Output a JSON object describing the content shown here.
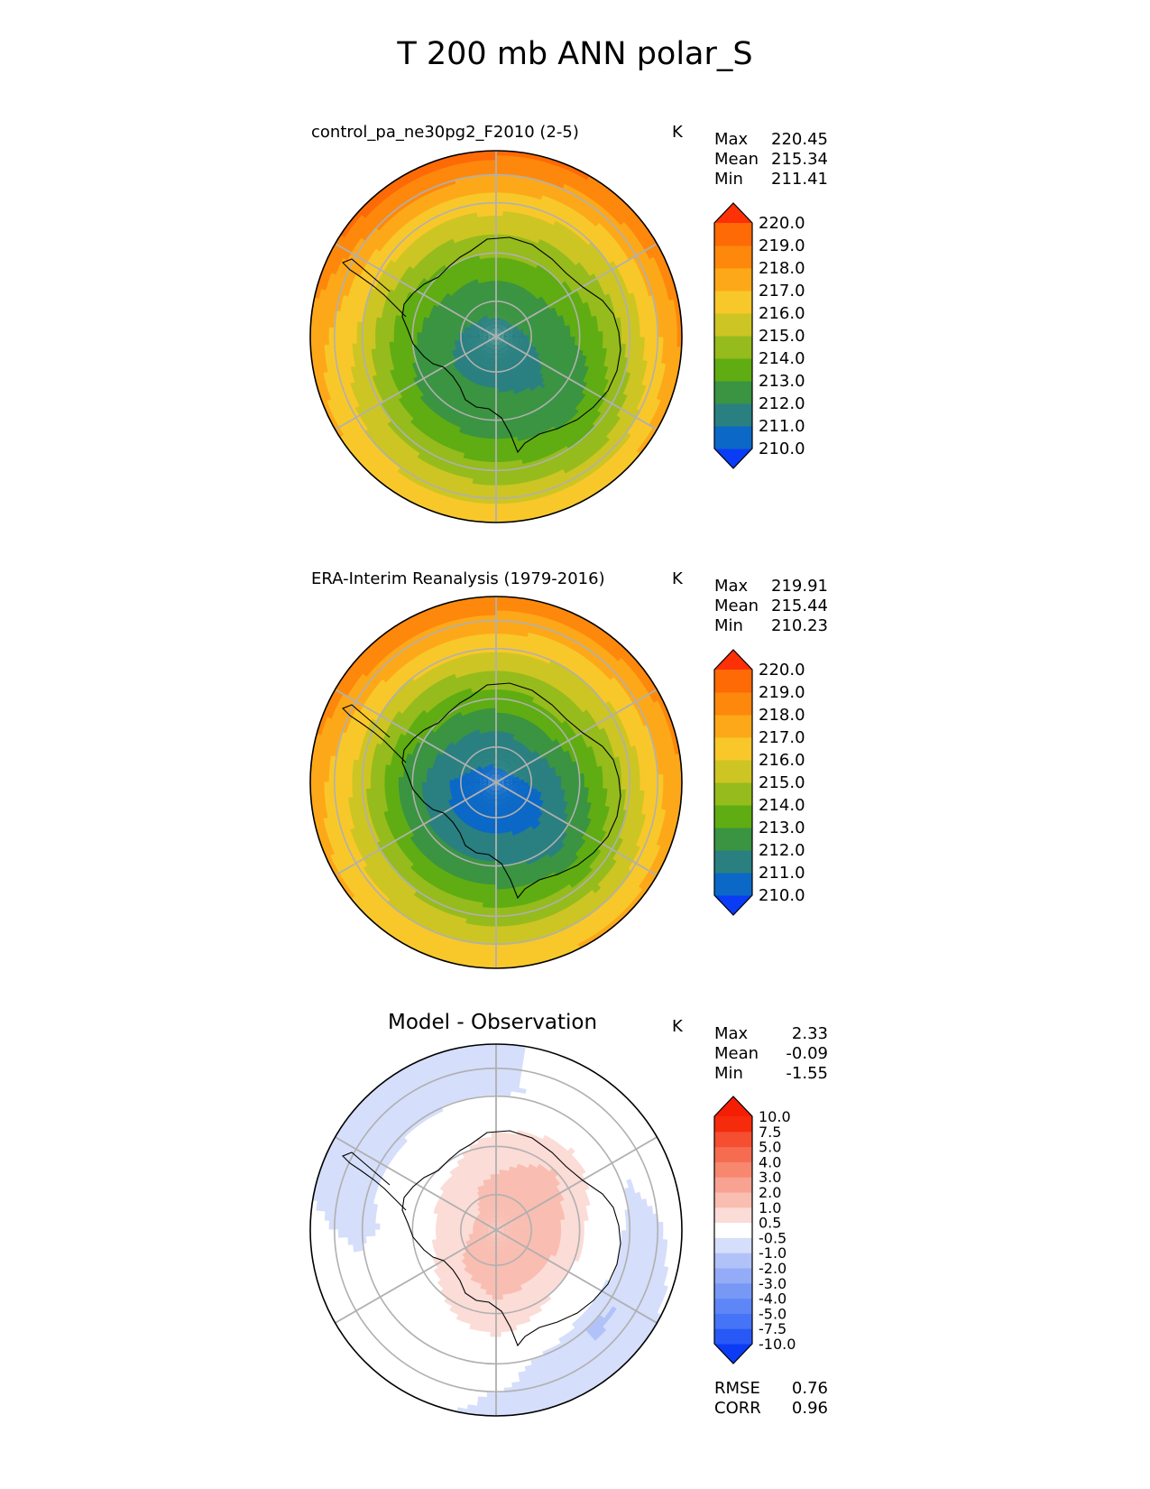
{
  "figure": {
    "title": "T 200 mb ANN polar_S",
    "units": "K"
  },
  "chart_data": [
    {
      "type": "heatmap",
      "projection": "south-polar-stereographic",
      "title": "control_pa_ne30pg2_F2010 (2-5)",
      "units": "K",
      "stats": {
        "max": "220.45",
        "mean": "215.34",
        "min": "211.41"
      },
      "stat_labels": {
        "max": "Max",
        "mean": "Mean",
        "min": "Min"
      },
      "colorbar": {
        "levels": [
          210,
          211,
          212,
          213,
          214,
          215,
          216,
          217,
          218,
          219,
          220
        ],
        "tick_labels": [
          "210.0",
          "211.0",
          "212.0",
          "213.0",
          "214.0",
          "215.0",
          "216.0",
          "217.0",
          "218.0",
          "219.0",
          "220.0"
        ],
        "colors": [
          "#0a3cf5",
          "#0b68c6",
          "#2a8080",
          "#3a9441",
          "#5fad12",
          "#96bb1c",
          "#cdc523",
          "#f8c82a",
          "#fda819",
          "#fd880c",
          "#fd6a06",
          "#fd3006"
        ],
        "extend": "both"
      },
      "field": {
        "min_lat_boundary": -50,
        "pole_value": 211.6,
        "rings": [
          {
            "lat": -90,
            "values": [
              211.6,
              211.6,
              211.6,
              211.6,
              211.6,
              211.6,
              211.6,
              211.6
            ]
          },
          {
            "lat": -80,
            "values": [
              211.9,
              211.8,
              212.2,
              212.6,
              212.6,
              212.4,
              212.1,
              211.9
            ]
          },
          {
            "lat": -70,
            "values": [
              212.6,
              212.2,
              213.4,
              214.4,
              214.6,
              214.2,
              213.4,
              212.8
            ]
          },
          {
            "lat": -60,
            "values": [
              214.6,
              214.2,
              215.6,
              216.3,
              216.8,
              216.8,
              216.0,
              215.0
            ]
          },
          {
            "lat": -50,
            "values": [
              216.8,
              217.0,
              218.2,
              219.0,
              219.4,
              219.6,
              217.6,
              216.9
            ]
          }
        ],
        "ring_longitudes": [
          0,
          45,
          90,
          135,
          180,
          225,
          270,
          315
        ]
      }
    },
    {
      "type": "heatmap",
      "projection": "south-polar-stereographic",
      "title": "ERA-Interim Reanalysis (1979-2016)",
      "units": "K",
      "stats": {
        "max": "219.91",
        "mean": "215.44",
        "min": "210.23"
      },
      "stat_labels": {
        "max": "Max",
        "mean": "Mean",
        "min": "Min"
      },
      "colorbar": {
        "levels": [
          210,
          211,
          212,
          213,
          214,
          215,
          216,
          217,
          218,
          219,
          220
        ],
        "tick_labels": [
          "210.0",
          "211.0",
          "212.0",
          "213.0",
          "214.0",
          "215.0",
          "216.0",
          "217.0",
          "218.0",
          "219.0",
          "220.0"
        ],
        "colors": [
          "#0a3cf5",
          "#0b68c6",
          "#2a8080",
          "#3a9441",
          "#5fad12",
          "#96bb1c",
          "#cdc523",
          "#f8c82a",
          "#fda819",
          "#fd880c",
          "#fd6a06",
          "#fd3006"
        ],
        "extend": "both"
      },
      "field": {
        "min_lat_boundary": -50,
        "pole_value": 210.6,
        "rings": [
          {
            "lat": -90,
            "values": [
              210.6,
              210.6,
              210.6,
              210.6,
              210.6,
              210.6,
              210.6,
              210.6
            ]
          },
          {
            "lat": -80,
            "values": [
              210.9,
              210.6,
              211.2,
              212.0,
              211.8,
              211.5,
              211.0,
              210.8
            ]
          },
          {
            "lat": -70,
            "values": [
              212.4,
              212.0,
              213.2,
              214.2,
              214.0,
              213.6,
              212.8,
              212.5
            ]
          },
          {
            "lat": -60,
            "values": [
              214.8,
              214.6,
              215.7,
              216.2,
              216.5,
              216.4,
              215.8,
              215.2
            ]
          },
          {
            "lat": -50,
            "values": [
              217.0,
              217.2,
              218.0,
              218.6,
              218.8,
              219.1,
              217.6,
              217.0
            ]
          }
        ],
        "ring_longitudes": [
          0,
          45,
          90,
          135,
          180,
          225,
          270,
          315
        ]
      }
    },
    {
      "type": "heatmap",
      "projection": "south-polar-stereographic",
      "title": "Model - Observation",
      "units": "K",
      "stats": {
        "max": "2.33",
        "mean": "-0.09",
        "min": "-1.55"
      },
      "stat_labels": {
        "max": "Max",
        "mean": "Mean",
        "min": "Min"
      },
      "metrics": {
        "rmse_label": "RMSE",
        "rmse": "0.76",
        "corr_label": "CORR",
        "corr": "0.96"
      },
      "colorbar": {
        "levels": [
          -10,
          -7.5,
          -5,
          -4,
          -3,
          -2,
          -1,
          -0.5,
          0.5,
          1,
          2,
          3,
          4,
          5,
          7.5,
          10
        ],
        "tick_labels": [
          "-10.0",
          "-7.5",
          "-5.0",
          "-4.0",
          "-3.0",
          "-2.0",
          "-1.0",
          "-0.5",
          "0.5",
          "1.0",
          "2.0",
          "3.0",
          "4.0",
          "5.0",
          "7.5",
          "10.0"
        ],
        "colors": [
          "#0b3bf5",
          "#2858f5",
          "#4674f6",
          "#5e86f6",
          "#7898f6",
          "#94acf7",
          "#b1c2f8",
          "#d5defa",
          "#ffffff",
          "#fbdcd6",
          "#f9bdb1",
          "#f8a291",
          "#f7876f",
          "#f66c51",
          "#f54e31",
          "#f52b0b",
          "#f41e05"
        ],
        "extend": "both"
      },
      "field": {
        "min_lat_boundary": -50,
        "pole_value": 1.1,
        "rings": [
          {
            "lat": -90,
            "values": [
              1.1,
              1.1,
              1.1,
              1.1,
              1.1,
              1.1,
              1.1,
              1.1
            ]
          },
          {
            "lat": -80,
            "values": [
              1.2,
              1.3,
              1.4,
              1.4,
              1.1,
              0.9,
              0.9,
              1.0
            ]
          },
          {
            "lat": -70,
            "values": [
              0.8,
              0.3,
              0.4,
              0.9,
              0.6,
              0.1,
              -0.4,
              0.3
            ]
          },
          {
            "lat": -60,
            "values": [
              -0.3,
              -1.1,
              -0.8,
              -0.2,
              -0.6,
              -0.7,
              -0.6,
              -0.1
            ]
          },
          {
            "lat": -50,
            "values": [
              -0.7,
              -0.6,
              -0.3,
              0.5,
              -0.7,
              -0.9,
              -0.4,
              0.1
            ]
          }
        ],
        "ring_longitudes": [
          0,
          45,
          90,
          135,
          180,
          225,
          270,
          315
        ]
      }
    }
  ]
}
